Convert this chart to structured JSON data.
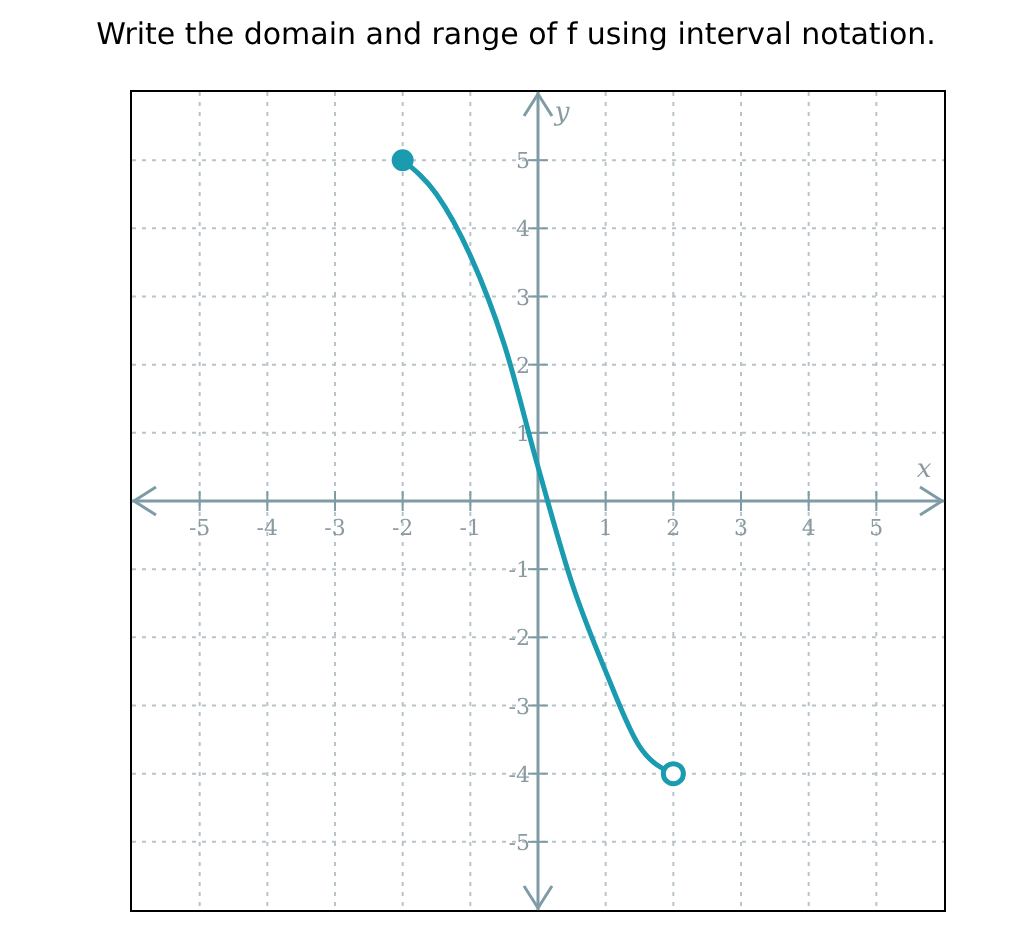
{
  "chart_data": {
    "type": "line",
    "title": "Write the domain and range of f using interval notation.",
    "xlabel": "x",
    "ylabel": "y",
    "x": [
      -2,
      -1.5,
      -1,
      -0.5,
      0,
      0.5,
      1,
      1.5,
      2
    ],
    "series": [
      {
        "color": "#1a9bb0",
        "values": [
          5,
          4.5,
          3.6,
          2.3,
          0.5,
          -1.2,
          -2.5,
          -3.6,
          -4
        ]
      }
    ],
    "xlim": [
      -6,
      6
    ],
    "ylim": [
      -6,
      6
    ],
    "xticks": [
      -5,
      -4,
      -3,
      -2,
      -1,
      1,
      2,
      3,
      4,
      5
    ],
    "yticks": [
      -5,
      -4,
      -3,
      -2,
      -1,
      1,
      2,
      3,
      4,
      5
    ],
    "grid": true,
    "line_style": "solid"
  }
}
